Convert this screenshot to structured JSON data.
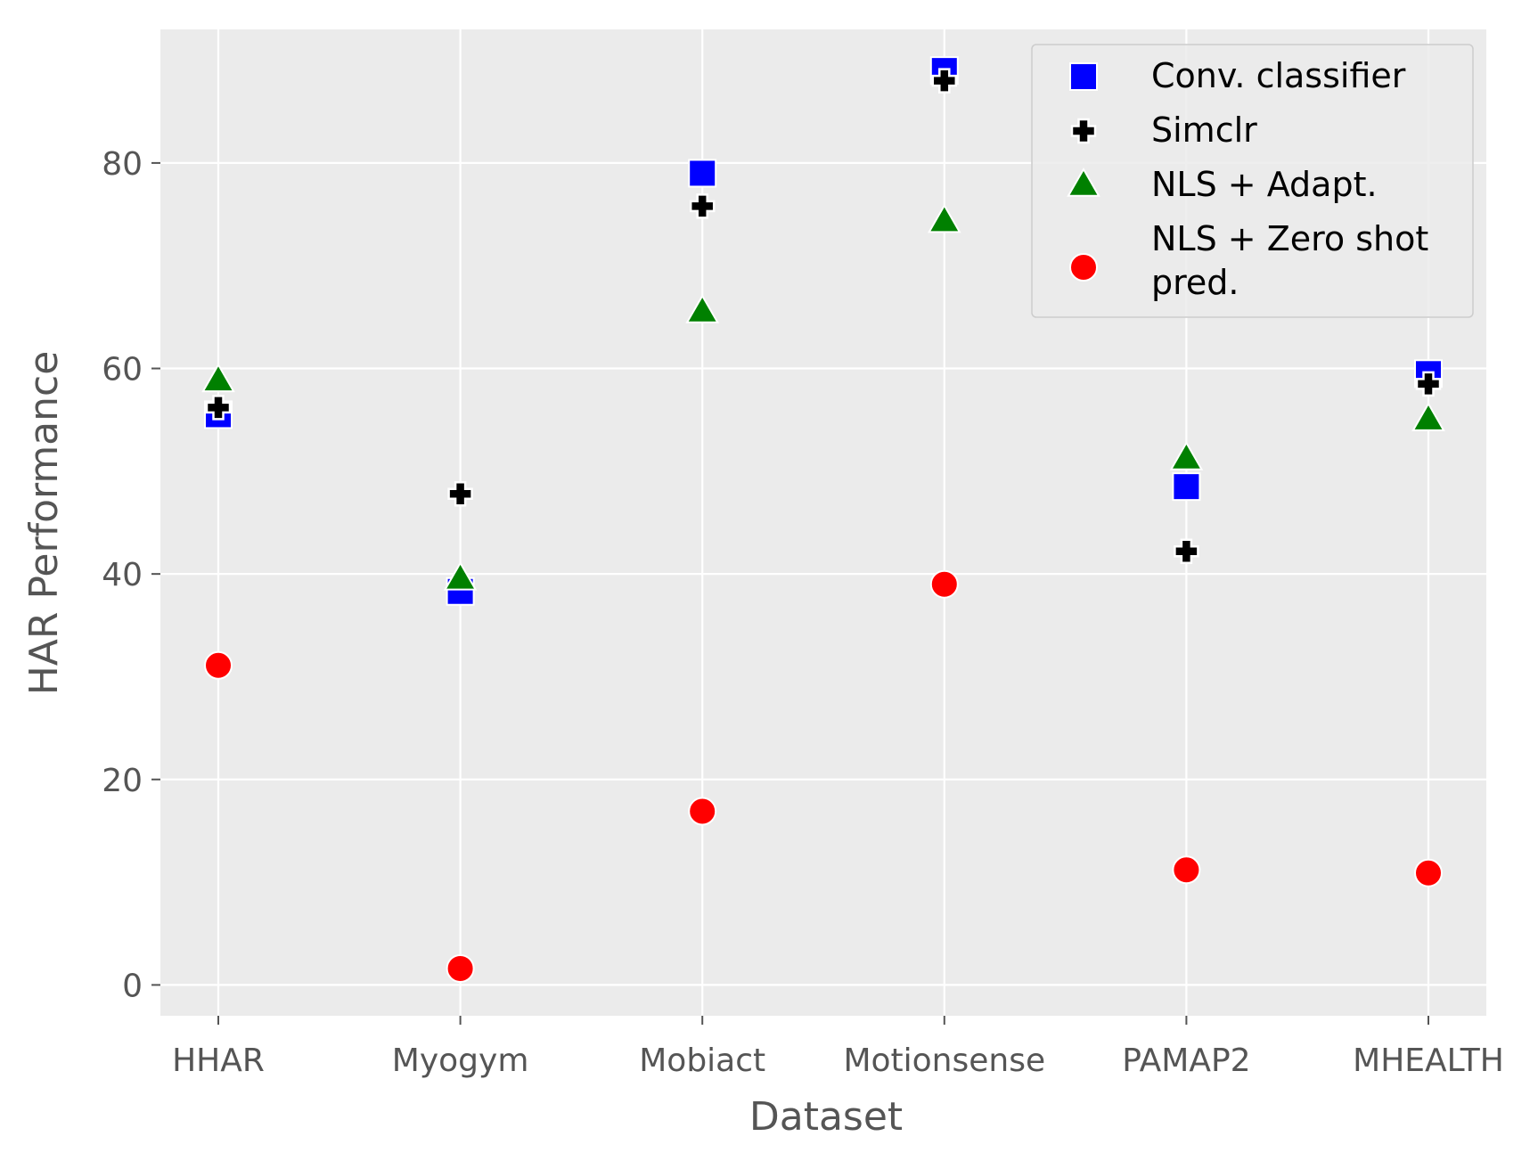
{
  "chart_data": {
    "type": "scatter",
    "xlabel": "Dataset",
    "ylabel": "HAR Performance",
    "categories": [
      "HHAR",
      "Myogym",
      "Mobiact",
      "Motionsense",
      "PAMAP2",
      "MHEALTH"
    ],
    "ylim": [
      -3,
      93
    ],
    "yticks": [
      0,
      20,
      40,
      60,
      80
    ],
    "grid": true,
    "legend_position": "top-right",
    "series": [
      {
        "name": "Conv. classifier",
        "marker": "square",
        "color": "#0000ff",
        "values": [
          55.5,
          38.3,
          79.0,
          89.0,
          48.5,
          59.5
        ]
      },
      {
        "name": "Simclr",
        "marker": "plus",
        "color": "#000000",
        "values": [
          56.2,
          47.8,
          75.8,
          88.0,
          42.2,
          58.5
        ]
      },
      {
        "name": "NLS + Adapt.",
        "marker": "triangle",
        "color": "#008000",
        "values": [
          58.8,
          39.5,
          65.5,
          74.3,
          51.2,
          55.0
        ]
      },
      {
        "name": "NLS + Zero shot\npred.",
        "marker": "circle",
        "color": "#ff0000",
        "values": [
          31.1,
          1.6,
          16.9,
          39.0,
          11.2,
          10.9
        ]
      }
    ]
  }
}
